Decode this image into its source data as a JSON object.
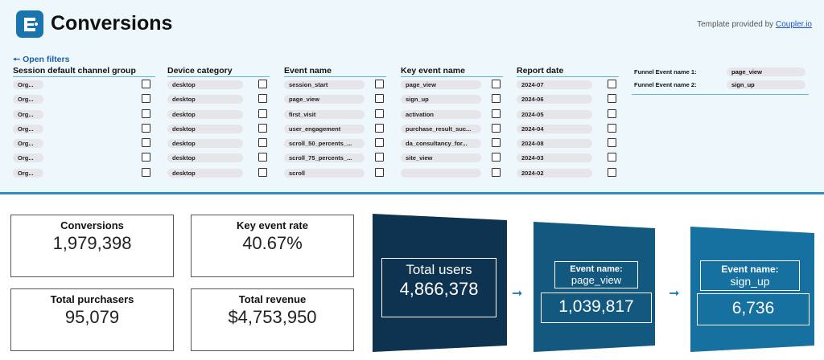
{
  "header": {
    "title": "Conversions",
    "provided_prefix": "Template provided by ",
    "provided_link": "Coupler.io"
  },
  "filters": {
    "open_label": "🠔 Open filters",
    "channel": {
      "label": "Session default channel group",
      "items": [
        "Org...",
        "Org...",
        "Org...",
        "Org...",
        "Org...",
        "Org...",
        "Org..."
      ]
    },
    "device": {
      "label": "Device category",
      "items": [
        "desktop",
        "desktop",
        "desktop",
        "desktop",
        "desktop",
        "desktop",
        "desktop"
      ]
    },
    "event": {
      "label": "Event name",
      "items": [
        "session_start",
        "page_view",
        "first_visit",
        "user_engagement",
        "scroll_50_percents_...",
        "scroll_75_percents_...",
        "scroll"
      ]
    },
    "key_event": {
      "label": "Key event name",
      "items": [
        "page_view",
        "sign_up",
        "activation",
        "purchase_result_suc...",
        "da_consultancy_for...",
        "site_view",
        ""
      ]
    },
    "report_date": {
      "label": "Report date",
      "items": [
        "2024-07",
        "2024-06",
        "2024-05",
        "2024-04",
        "2024-08",
        "2024-03",
        "2024-02"
      ]
    },
    "funnel": {
      "name1_label": "Funnel Event name 1:",
      "name1_value": "page_view",
      "name2_label": "Funnel Event name 2:",
      "name2_value": "sign_up"
    }
  },
  "kpis": {
    "conversions": {
      "label": "Conversions",
      "value": "1,979,398"
    },
    "key_event_rate": {
      "label": "Key event rate",
      "value": "40.67%"
    },
    "total_purchasers": {
      "label": "Total purchasers",
      "value": "95,079"
    },
    "total_revenue": {
      "label": "Total revenue",
      "value": "$4,753,950"
    }
  },
  "funnel": {
    "step1": {
      "label": "Total users",
      "value": "4,866,378",
      "color": "#0d3350"
    },
    "step2": {
      "label1": "Event name:",
      "label2": "page_view",
      "value": "1,039,817",
      "color": "#13587f"
    },
    "step3": {
      "label1": "Event name:",
      "label2": "sign_up",
      "value": "6,736",
      "color": "#1670a0"
    },
    "arrow": "➞"
  },
  "colors": {
    "accent": "#1a74ad",
    "panel_bg": "#eef8fc"
  }
}
